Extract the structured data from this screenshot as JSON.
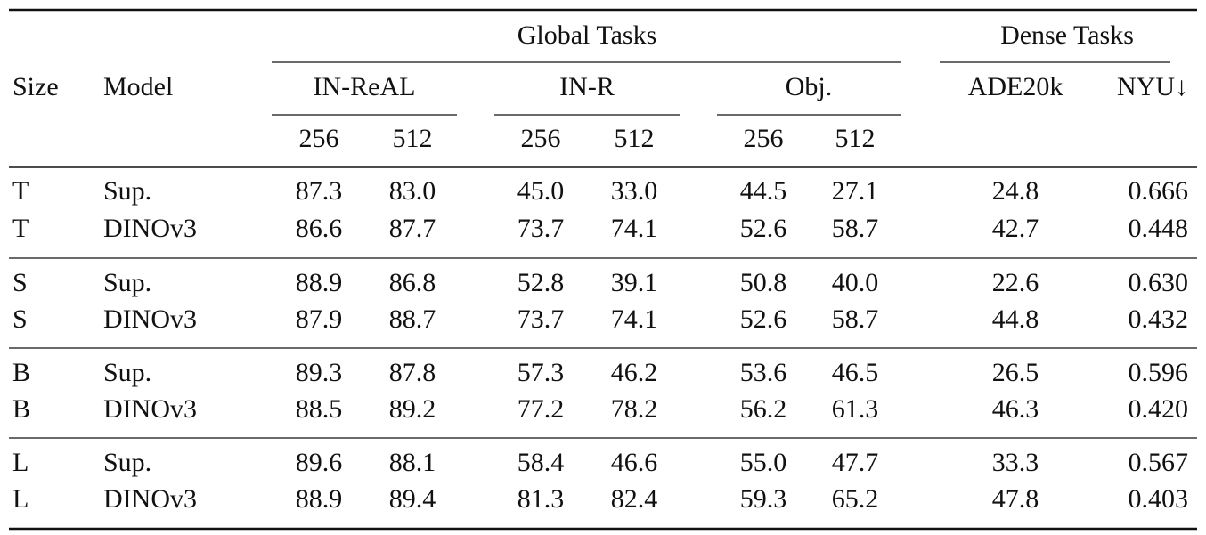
{
  "header": {
    "global_tasks": "Global Tasks",
    "dense_tasks": "Dense Tasks",
    "size": "Size",
    "model": "Model",
    "in_real": "IN-ReAL",
    "in_r": "IN-R",
    "obj": "Obj.",
    "ade20k": "ADE20k",
    "nyu": "NYU↓",
    "resolutions": [
      "256",
      "512",
      "256",
      "512",
      "256",
      "512"
    ]
  },
  "table": {
    "rows": [
      [
        "T",
        "Sup.",
        "87.3",
        "83.0",
        "45.0",
        "33.0",
        "44.5",
        "27.1",
        "24.8",
        "0.666"
      ],
      [
        "T",
        "DINOv3",
        "86.6",
        "87.7",
        "73.7",
        "74.1",
        "52.6",
        "58.7",
        "42.7",
        "0.448"
      ],
      [
        "S",
        "Sup.",
        "88.9",
        "86.8",
        "52.8",
        "39.1",
        "50.8",
        "40.0",
        "22.6",
        "0.630"
      ],
      [
        "S",
        "DINOv3",
        "87.9",
        "88.7",
        "73.7",
        "74.1",
        "52.6",
        "58.7",
        "44.8",
        "0.432"
      ],
      [
        "B",
        "Sup.",
        "89.3",
        "87.8",
        "57.3",
        "46.2",
        "53.6",
        "46.5",
        "26.5",
        "0.596"
      ],
      [
        "B",
        "DINOv3",
        "88.5",
        "89.2",
        "77.2",
        "78.2",
        "56.2",
        "61.3",
        "46.3",
        "0.420"
      ],
      [
        "L",
        "Sup.",
        "89.6",
        "88.1",
        "58.4",
        "46.6",
        "55.0",
        "47.7",
        "33.3",
        "0.567"
      ],
      [
        "L",
        "DINOv3",
        "88.9",
        "89.4",
        "81.3",
        "82.4",
        "59.3",
        "65.2",
        "47.8",
        "0.403"
      ]
    ]
  }
}
